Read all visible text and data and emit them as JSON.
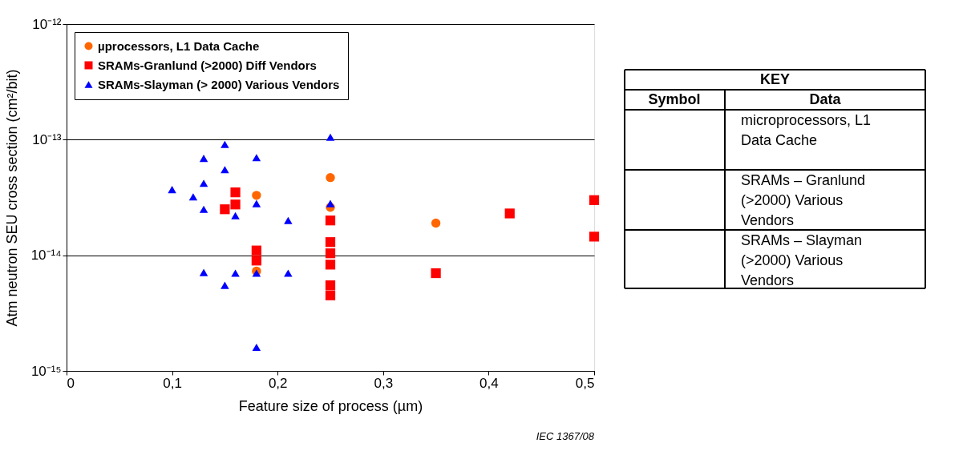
{
  "chart_data": [
    {
      "type": "scatter",
      "xlabel": "Feature size of process   (µm)",
      "ylabel": "Atm neutron SEU cross section   (cm²/bit)",
      "log": "y",
      "xlim": [
        0,
        0.5
      ],
      "ylim": [
        1e-15,
        1e-12
      ],
      "xticks": [
        0,
        {
          "value": 0.1,
          "label": "0,1"
        },
        {
          "value": 0.2,
          "label": "0,2"
        },
        {
          "value": 0.3,
          "label": "0,3"
        },
        {
          "value": 0.4,
          "label": "0,4"
        },
        {
          "value": 0.5,
          "label": "0,5"
        }
      ],
      "yticks": [
        {
          "value": 1e-15,
          "label": "10⁻¹⁵"
        },
        {
          "value": 1e-14,
          "label": "10⁻¹⁴"
        },
        {
          "value": 1e-13,
          "label": "10⁻¹³"
        },
        {
          "value": 1e-12,
          "label": "10⁻¹²"
        }
      ],
      "grid": "y",
      "legend": "top left",
      "annotations": [
        "IEC  1367/08"
      ],
      "series": [
        {
          "name": "µprocessors, L1 Data Cache",
          "color": "#ff6600",
          "marker": "circle",
          "x": [
            0.18,
            0.18,
            0.25,
            0.25,
            0.35
          ],
          "values": [
            3.3e-14,
            7.3e-15,
            4.7e-14,
            2.6e-14,
            1.9e-14
          ]
        },
        {
          "name": "SRAMs-Granlund (>2000) Diff Vendors",
          "color": "#ff0000",
          "marker": "square",
          "x": [
            0.15,
            0.16,
            0.16,
            0.18,
            0.18,
            0.25,
            0.25,
            0.25,
            0.25,
            0.25,
            0.25,
            0.35,
            0.42,
            0.5,
            0.5
          ],
          "values": [
            2.5e-14,
            3.5e-14,
            2.75e-14,
            1.1e-14,
            9e-15,
            2e-14,
            1.3e-14,
            1.04e-14,
            8.3e-15,
            5.5e-15,
            4.5e-15,
            7e-15,
            2.3e-14,
            3e-14,
            1.45e-14
          ]
        },
        {
          "name": "SRAMs-Slayman (> 2000) Various Vendors",
          "color": "#0000ff",
          "marker": "triangle",
          "x": [
            0.1,
            0.12,
            0.13,
            0.13,
            0.13,
            0.13,
            0.15,
            0.15,
            0.15,
            0.16,
            0.16,
            0.18,
            0.18,
            0.18,
            0.18,
            0.21,
            0.21,
            0.25,
            0.25
          ],
          "values": [
            3.7e-14,
            3.2e-14,
            6.9e-14,
            4.2e-14,
            2.5e-14,
            7.1e-15,
            9.1e-14,
            5.5e-14,
            5.5e-15,
            2.2e-14,
            7e-15,
            7e-14,
            2.8e-14,
            7e-15,
            1.6e-15,
            2e-14,
            7e-15,
            1.05e-13,
            2.8e-14
          ]
        }
      ]
    },
    {
      "type": "other",
      "title": "KEY",
      "annotations": [
        "Symbol",
        "Data",
        "microprocessors, L1 Data Cache",
        "SRAMs – Granlund (>2000) Various Vendors",
        "SRAMs – Slayman (>2000) Various Vendors"
      ]
    }
  ]
}
